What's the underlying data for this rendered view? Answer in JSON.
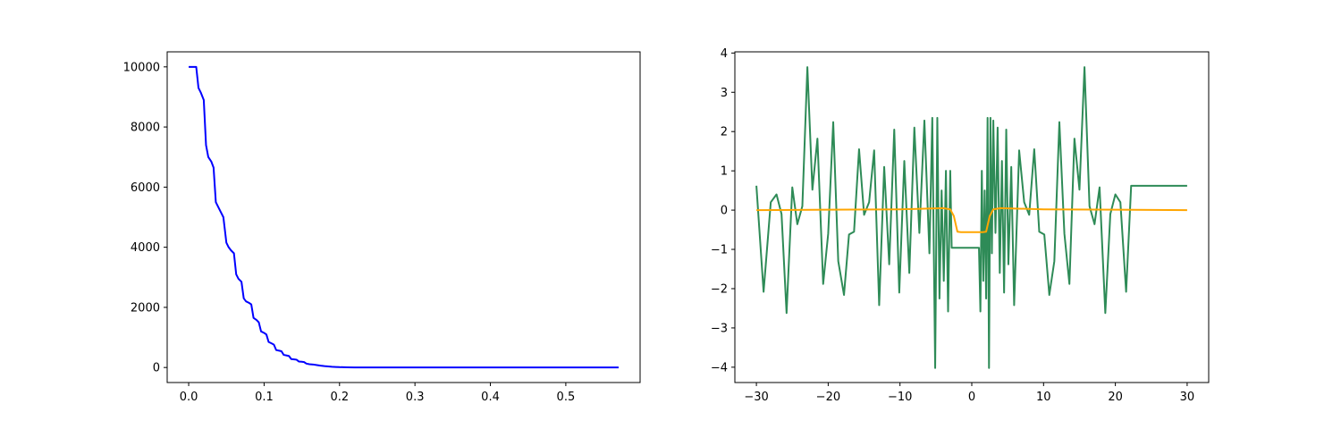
{
  "chart_data": [
    {
      "type": "line",
      "title": "",
      "xlabel": "",
      "ylabel": "",
      "xlim": [
        -0.0285,
        0.5985
      ],
      "ylim": [
        -500,
        10500
      ],
      "grid": false,
      "xticks": [
        0.0,
        0.1,
        0.2,
        0.3,
        0.4,
        0.5
      ],
      "xtick_labels": [
        "0.0",
        "0.1",
        "0.2",
        "0.3",
        "0.4",
        "0.5"
      ],
      "yticks": [
        0,
        2000,
        4000,
        6000,
        8000,
        10000
      ],
      "ytick_labels": [
        "0",
        "2000",
        "4000",
        "6000",
        "8000",
        "10000"
      ],
      "series": [
        {
          "color": "#0000ff",
          "x": [
            0.0,
            0.005,
            0.01,
            0.013,
            0.016,
            0.02,
            0.023,
            0.026,
            0.03,
            0.033,
            0.036,
            0.04,
            0.043,
            0.046,
            0.05,
            0.053,
            0.056,
            0.06,
            0.063,
            0.066,
            0.07,
            0.073,
            0.076,
            0.08,
            0.083,
            0.086,
            0.09,
            0.093,
            0.096,
            0.1,
            0.103,
            0.106,
            0.11,
            0.113,
            0.116,
            0.12,
            0.123,
            0.126,
            0.13,
            0.133,
            0.136,
            0.14,
            0.143,
            0.146,
            0.15,
            0.153,
            0.156,
            0.16,
            0.165,
            0.17,
            0.175,
            0.18,
            0.185,
            0.19,
            0.195,
            0.2,
            0.21,
            0.22,
            0.23,
            0.24,
            0.25,
            0.26,
            0.28,
            0.3,
            0.35,
            0.4,
            0.45,
            0.5,
            0.57
          ],
          "y": [
            10000,
            10000,
            10000,
            9300,
            9150,
            8900,
            7400,
            7000,
            6850,
            6650,
            5500,
            5300,
            5150,
            5000,
            4150,
            4000,
            3900,
            3800,
            3100,
            2950,
            2850,
            2300,
            2200,
            2150,
            2100,
            1650,
            1580,
            1500,
            1200,
            1150,
            1100,
            850,
            800,
            760,
            580,
            560,
            540,
            420,
            400,
            380,
            280,
            270,
            260,
            200,
            190,
            180,
            130,
            110,
            100,
            80,
            60,
            45,
            35,
            25,
            18,
            12,
            6,
            3,
            1,
            0,
            0,
            0,
            0,
            0,
            0,
            0,
            0,
            0,
            0
          ]
        }
      ]
    },
    {
      "type": "line",
      "title": "",
      "xlabel": "",
      "ylabel": "",
      "xlim": [
        -33,
        33
      ],
      "ylim": [
        -4.39,
        4.03
      ],
      "grid": false,
      "xticks": [
        -30,
        -20,
        -10,
        0,
        10,
        20,
        30
      ],
      "xtick_labels": [
        "−30",
        "−20",
        "−10",
        "0",
        "10",
        "20",
        "30"
      ],
      "yticks": [
        -4,
        -3,
        -2,
        -1,
        0,
        1,
        2,
        3,
        4
      ],
      "ytick_labels": [
        "−4",
        "−3",
        "−2",
        "−1",
        "0",
        "1",
        "2",
        "3",
        "4"
      ],
      "series": [
        {
          "color": "#2e8b57",
          "x": [
            -30,
            -29.0,
            -28,
            -27.2,
            -26.5,
            -25.8,
            -25.0,
            -24.3,
            -23.6,
            -22.9,
            -22.2,
            -21.5,
            -20.7,
            -20.0,
            -19.3,
            -18.6,
            -17.8,
            -17.1,
            -16.4,
            -15.7,
            -15.0,
            -14.3,
            -13.6,
            -12.9,
            -12.2,
            -11.5,
            -10.8,
            -10.1,
            -9.4,
            -8.7,
            -8.0,
            -7.3,
            -6.6,
            -5.9,
            -5.5,
            -5.1,
            -4.8,
            -4.5,
            -4.2,
            -3.9,
            -3.6,
            -3.3,
            -3.0,
            -2.8,
            -2.6,
            -2.4,
            -2.2,
            -2.0,
            -1.8,
            -1.6,
            -1.4,
            -1.2,
            -1.0,
            0.0,
            1.0,
            1.2,
            1.4,
            1.6,
            1.8,
            2.0,
            2.2,
            2.4,
            2.6,
            2.8,
            3.0,
            3.3,
            3.6,
            3.9,
            4.2,
            4.5,
            4.8,
            5.1,
            5.5,
            5.9,
            6.6,
            7.3,
            8.0,
            8.7,
            9.4,
            10.1,
            10.8,
            11.5,
            12.2,
            12.9,
            13.6,
            14.3,
            15.0,
            15.7,
            16.4,
            17.1,
            17.8,
            18.6,
            19.3,
            20.0,
            20.7,
            21.5,
            22.2,
            22.9,
            23.6,
            24.3,
            25.0,
            25.8,
            26.5,
            27.2,
            28,
            29.0,
            30
          ],
          "y": [
            0.62,
            -2.08,
            0.2,
            0.4,
            -0.1,
            -2.62,
            0.58,
            -0.36,
            0.1,
            3.64,
            0.52,
            1.82,
            -1.88,
            -0.6,
            2.24,
            -1.3,
            -2.16,
            -0.62,
            -0.55,
            1.55,
            -0.12,
            0.2,
            1.52,
            -2.42,
            1.1,
            -1.38,
            2.05,
            -2.1,
            1.25,
            -1.6,
            2.1,
            -0.58,
            2.28,
            -1.1,
            2.35,
            -4.02,
            2.35,
            -2.25,
            0.5,
            -1.8,
            1.0,
            -2.58,
            1.0,
            -0.96,
            -0.96,
            -0.96,
            -0.96,
            -0.96,
            -0.96,
            -0.96,
            -0.96,
            -0.96,
            -0.96,
            -0.96,
            -0.96,
            -2.58,
            1.0,
            -1.8,
            0.5,
            -2.25,
            2.35,
            -4.02,
            2.35,
            -1.1,
            2.28,
            -0.58,
            2.1,
            -1.6,
            1.25,
            -2.1,
            2.05,
            -1.38,
            1.1,
            -2.42,
            1.52,
            0.2,
            -0.12,
            1.55,
            -0.55,
            -0.62,
            -2.16,
            -1.3,
            2.24,
            -0.6,
            -1.88,
            1.82,
            0.52,
            3.64,
            0.1,
            -0.36,
            0.58,
            -2.62,
            -0.1,
            0.4,
            0.2,
            -2.08,
            0.62,
            0.62,
            0.62,
            0.62,
            0.62,
            0.62,
            0.62,
            0.62,
            0.62,
            0.62,
            0.62
          ]
        },
        {
          "color": "#ffa500",
          "x": [
            -30,
            -20,
            -10,
            -6,
            -4,
            -3,
            -2.5,
            -2,
            -1.5,
            -1,
            0,
            1,
            1.5,
            2,
            2.5,
            3,
            4,
            6,
            10,
            20,
            30
          ],
          "y": [
            0.0,
            0.01,
            0.02,
            0.04,
            0.05,
            0.02,
            -0.15,
            -0.55,
            -0.56,
            -0.56,
            -0.56,
            -0.56,
            -0.56,
            -0.55,
            -0.15,
            0.02,
            0.05,
            0.04,
            0.02,
            0.01,
            0.0
          ]
        }
      ]
    }
  ]
}
